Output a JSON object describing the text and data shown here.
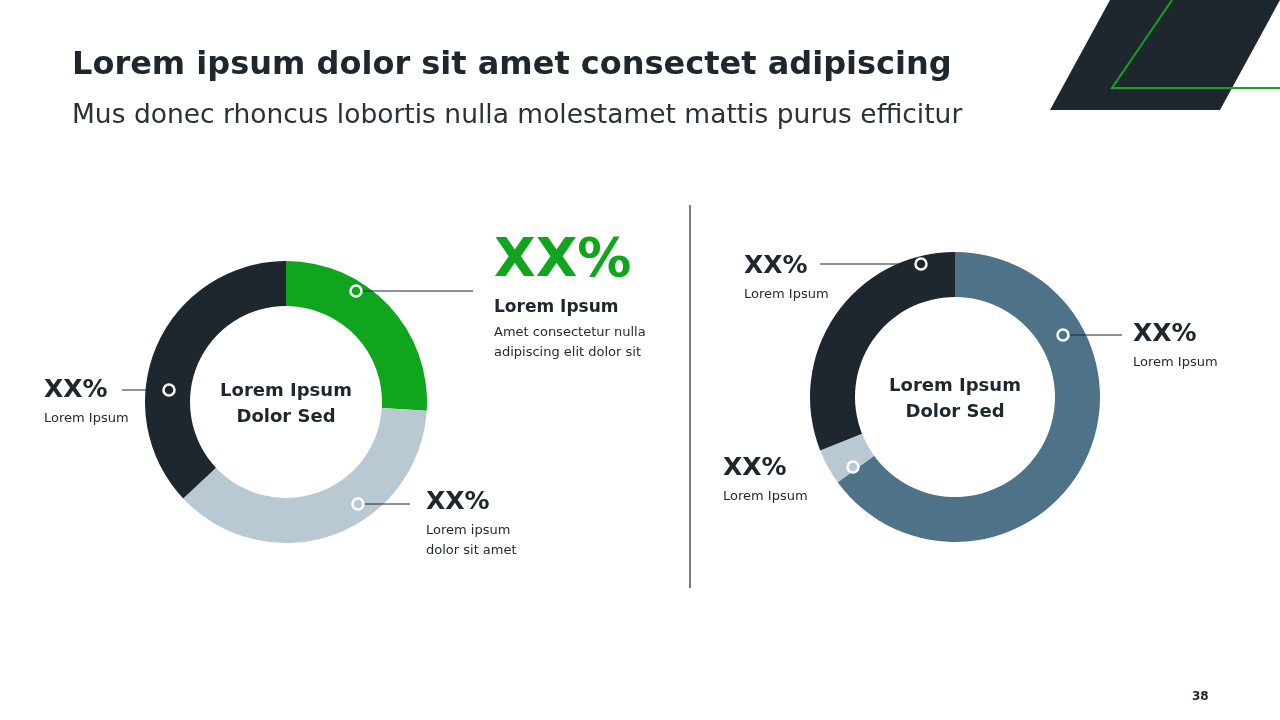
{
  "chart_data": [
    {
      "type": "donut",
      "title": "Lorem ipsum dolor sit amet consectet adipiscing",
      "subtitle": "Mus donec rhoncus lobortis nulla molestamet mattis purus efficitur",
      "categories": [
        "Lorem Ipsum",
        "Lorem ipsum dolor sit amet",
        "Lorem Ipsum"
      ],
      "values": [
        26,
        37,
        37
      ],
      "colors": [
        "#0fa61e",
        "#b8c9d3",
        "#1e262e"
      ],
      "value_labels": [
        "XX%",
        "XX%",
        "XX%"
      ],
      "annotations": [
        "Lorem Ipsum Dolor Sed",
        "Amet consectetur nulla adipiscing elit dolor sit"
      ]
    },
    {
      "type": "donut",
      "categories": [
        "Lorem Ipsum",
        "Lorem Ipsum",
        "Lorem Ipsum"
      ],
      "values": [
        65,
        4,
        31
      ],
      "colors": [
        "#4e7389",
        "#b8c9d3",
        "#1e262e"
      ],
      "value_labels": [
        "XX%",
        "XX%",
        "XX%"
      ],
      "annotations": [
        "Lorem Ipsum Dolor Sed",
        "38"
      ]
    }
  ]
}
